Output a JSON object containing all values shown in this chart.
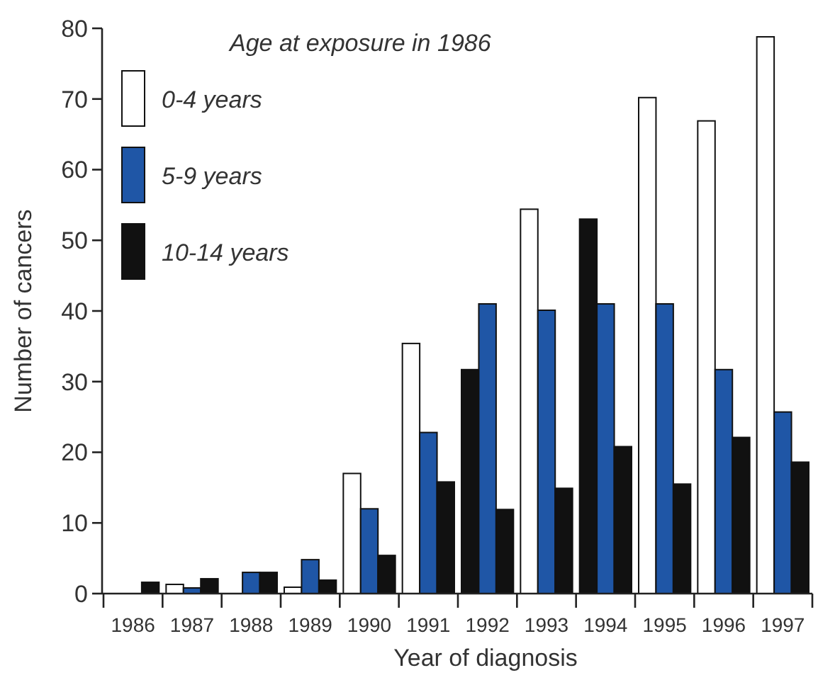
{
  "chart_data": {
    "type": "bar",
    "xlabel": "Year of diagnosis",
    "ylabel": "Number of cancers",
    "legend_title": "Age at exposure in 1986",
    "legend": "top left",
    "categories": [
      "1986",
      "1987",
      "1988",
      "1989",
      "1990",
      "1991",
      "1992",
      "1993",
      "1994",
      "1995",
      "1996",
      "1997"
    ],
    "series": [
      {
        "name": "0-4 years",
        "color": "#ffffff",
        "colors": [
          "#ffffff",
          "#ffffff",
          "#ffffff",
          "#ffffff",
          "#ffffff",
          "#ffffff",
          "#111111",
          "#ffffff",
          "#111111",
          "#ffffff",
          "#ffffff",
          "#ffffff"
        ],
        "values": [
          0,
          1.3,
          0,
          0.9,
          17,
          35.4,
          31.7,
          54.4,
          53,
          70.2,
          66.9,
          78.8
        ]
      },
      {
        "name": "5-9 years",
        "color": "#1f56a6",
        "values": [
          0,
          0.8,
          3,
          4.8,
          12,
          22.8,
          41,
          40.1,
          41,
          41,
          31.7,
          25.7
        ]
      },
      {
        "name": "10-14 years",
        "color": "#111111",
        "values": [
          1.6,
          2.1,
          3,
          1.9,
          5.4,
          15.8,
          11.9,
          14.9,
          20.8,
          15.5,
          22.1,
          18.6
        ]
      }
    ],
    "ylim": [
      0,
      80
    ],
    "yticks": [
      0,
      10,
      20,
      30,
      40,
      50,
      60,
      70,
      80
    ],
    "grid": false
  }
}
